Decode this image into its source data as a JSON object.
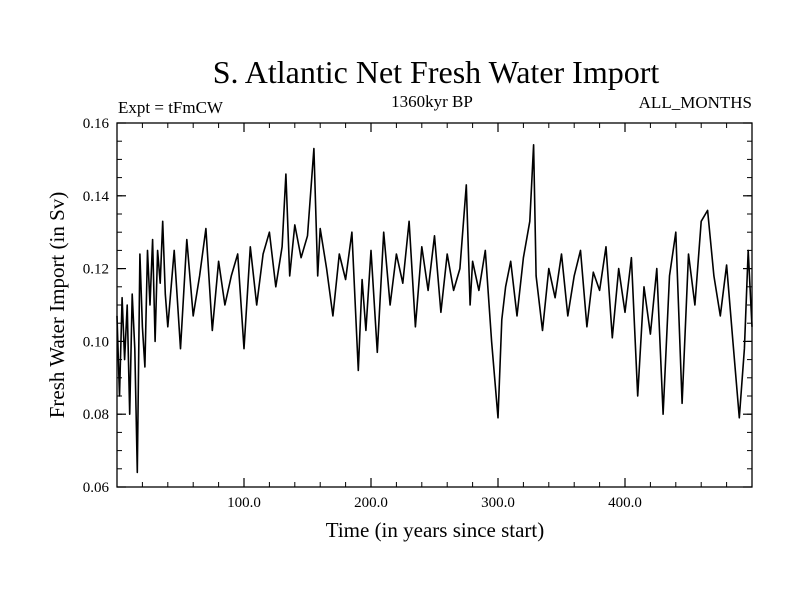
{
  "chart_data": {
    "type": "line",
    "title": "S. Atlantic Net Fresh Water Import",
    "subtitle_left": "Expt = tFmCW",
    "subtitle_center": "1360kyr BP",
    "subtitle_right": "ALL_MONTHS",
    "xlabel": "Time (in years since start)",
    "ylabel": "Fresh Water Import (in Sv)",
    "xlim": [
      0,
      500
    ],
    "ylim": [
      0.06,
      0.16
    ],
    "xticks": [
      100,
      200,
      300,
      400
    ],
    "xtick_labels": [
      "100.0",
      "200.0",
      "300.0",
      "400.0"
    ],
    "yticks": [
      0.06,
      0.08,
      0.1,
      0.12,
      0.14,
      0.16
    ],
    "ytick_labels": [
      "0.06",
      "0.08",
      "0.10",
      "0.12",
      "0.14",
      "0.16"
    ],
    "grid": false,
    "series": [
      {
        "name": "Fresh Water Import",
        "color": "#000000",
        "x": [
          0,
          2,
          4,
          6,
          8,
          10,
          12,
          14,
          16,
          18,
          20,
          22,
          24,
          26,
          28,
          30,
          32,
          34,
          36,
          38,
          40,
          45,
          50,
          55,
          60,
          65,
          70,
          75,
          80,
          85,
          90,
          95,
          100,
          105,
          110,
          115,
          120,
          125,
          130,
          133,
          136,
          140,
          145,
          150,
          155,
          158,
          160,
          165,
          170,
          175,
          180,
          185,
          190,
          193,
          196,
          200,
          205,
          210,
          215,
          220,
          225,
          230,
          235,
          240,
          245,
          250,
          255,
          260,
          265,
          270,
          275,
          278,
          280,
          285,
          290,
          295,
          300,
          303,
          306,
          310,
          315,
          320,
          325,
          328,
          330,
          335,
          340,
          345,
          350,
          355,
          360,
          365,
          370,
          375,
          380,
          385,
          390,
          395,
          400,
          405,
          410,
          415,
          420,
          425,
          430,
          435,
          440,
          445,
          450,
          455,
          460,
          465,
          470,
          475,
          480,
          485,
          490,
          494,
          497,
          500
        ],
        "values": [
          0.107,
          0.085,
          0.112,
          0.095,
          0.11,
          0.08,
          0.113,
          0.098,
          0.064,
          0.124,
          0.104,
          0.093,
          0.125,
          0.11,
          0.128,
          0.1,
          0.125,
          0.116,
          0.133,
          0.113,
          0.104,
          0.125,
          0.098,
          0.128,
          0.107,
          0.118,
          0.131,
          0.103,
          0.122,
          0.11,
          0.118,
          0.124,
          0.098,
          0.126,
          0.11,
          0.124,
          0.13,
          0.115,
          0.126,
          0.146,
          0.118,
          0.132,
          0.123,
          0.129,
          0.153,
          0.118,
          0.131,
          0.12,
          0.107,
          0.124,
          0.117,
          0.13,
          0.092,
          0.117,
          0.103,
          0.125,
          0.097,
          0.13,
          0.11,
          0.124,
          0.116,
          0.133,
          0.104,
          0.126,
          0.114,
          0.129,
          0.108,
          0.124,
          0.114,
          0.12,
          0.143,
          0.11,
          0.122,
          0.114,
          0.125,
          0.1,
          0.079,
          0.106,
          0.115,
          0.122,
          0.107,
          0.123,
          0.133,
          0.154,
          0.118,
          0.103,
          0.12,
          0.112,
          0.124,
          0.107,
          0.118,
          0.125,
          0.104,
          0.119,
          0.114,
          0.126,
          0.101,
          0.12,
          0.108,
          0.123,
          0.085,
          0.115,
          0.102,
          0.12,
          0.08,
          0.118,
          0.13,
          0.083,
          0.124,
          0.11,
          0.133,
          0.136,
          0.118,
          0.107,
          0.121,
          0.1,
          0.079,
          0.098,
          0.125,
          0.104
        ]
      }
    ]
  }
}
